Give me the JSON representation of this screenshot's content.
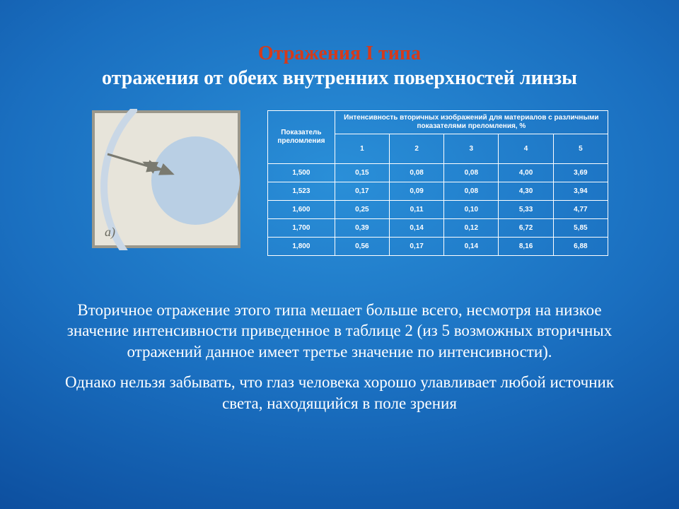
{
  "title": {
    "line1": "Отражения I типа",
    "line2": "отражения от обеих внутренних поверхностей линзы",
    "line1_color": "#d63a1a",
    "line2_color": "#ffffff",
    "fontsize": 28
  },
  "diagram": {
    "label": "a)",
    "bg_color": "#e7e4da",
    "border_color": "#9a978b",
    "lens_color": "#b9cfe4",
    "paren_color": "#c9d7e6",
    "ray_color": "#7a7a70"
  },
  "table": {
    "header_left": "Показатель преломления",
    "header_top": "Интенсивность вторичных изображений для материалов с различными показателями преломления, %",
    "col_numbers": [
      "1",
      "2",
      "3",
      "4",
      "5"
    ],
    "rows": [
      {
        "index": "1,500",
        "vals": [
          "0,15",
          "0,08",
          "0,08",
          "4,00",
          "3,69"
        ]
      },
      {
        "index": "1,523",
        "vals": [
          "0,17",
          "0,09",
          "0,08",
          "4,30",
          "3,94"
        ]
      },
      {
        "index": "1,600",
        "vals": [
          "0,25",
          "0,11",
          "0,10",
          "5,33",
          "4,77"
        ]
      },
      {
        "index": "1,700",
        "vals": [
          "0,39",
          "0,14",
          "0,12",
          "6,72",
          "5,85"
        ]
      },
      {
        "index": "1,800",
        "vals": [
          "0,56",
          "0,17",
          "0,14",
          "8,16",
          "6,88"
        ]
      }
    ],
    "border_color": "#ffffff",
    "text_color": "#ffffff",
    "fontsize": 10
  },
  "body": {
    "p1": "Вторичное отражение этого типа мешает больше всего, несмотря на низкое значение интенсивности приведенное в таблице 2 (из 5 возможных вторичных отражений данное имеет третье значение по интенсивности).",
    "p2": "Однако нельзя забывать, что глаз человека хорошо улавливает любой источник света, находящийся в поле зрения",
    "fontsize": 23,
    "color": "#ffffff"
  },
  "background": {
    "gradient_inner": "#2a8fd8",
    "gradient_outer": "#063a7a"
  }
}
